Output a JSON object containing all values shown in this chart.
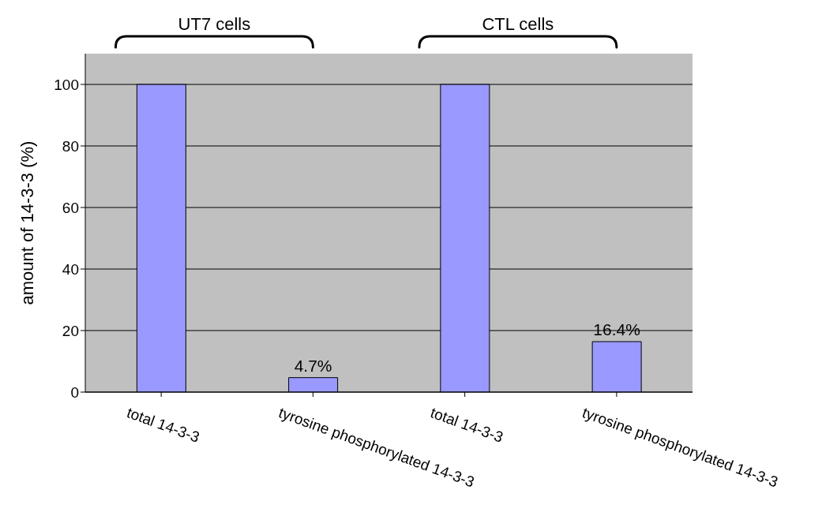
{
  "chart_data": {
    "type": "bar",
    "ylabel": "amount of 14-3-3 (%)",
    "categories": [
      "total 14-3-3",
      "tyrosine phosphorylated 14-3-3",
      "total 14-3-3",
      "tyrosine phosphorylated 14-3-3"
    ],
    "values": [
      100,
      4.7,
      100,
      16.4
    ],
    "color": "#9999ff",
    "value_labels": [
      null,
      "4.7%",
      null,
      "16.4%"
    ],
    "annotations": [
      "UT7 cells",
      "CTL cells"
    ],
    "ylim": [
      0,
      110
    ],
    "yticks": [
      0,
      20,
      40,
      60,
      80,
      100
    ],
    "grid": "y",
    "legend": false
  }
}
